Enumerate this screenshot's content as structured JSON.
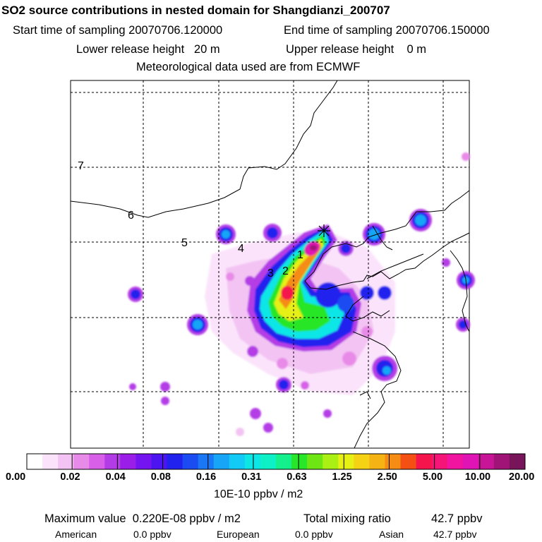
{
  "header": {
    "title": "SO2 source contributions in nested domain for Shangdianzi_200707",
    "start_sampling": "Start time of sampling 20070706.120000",
    "end_sampling": "End time of sampling 20070706.150000",
    "lower_release": "Lower release height   20 m",
    "upper_release": "Upper release height    0 m",
    "meteo": "Meteorological data used are from ECMWF"
  },
  "chart_data": {
    "type": "heatmap",
    "title": "SO2 source contributions in nested domain for Shangdianzi_200707",
    "units": "10E-10 ppbv / m2",
    "colorbar": {
      "tick_labels": [
        "0.00",
        "0.02",
        "0.04",
        "0.08",
        "0.16",
        "0.31",
        "0.63",
        "1.25",
        "2.50",
        "5.00",
        "10.00",
        "20.00"
      ],
      "colors": [
        "#ffffff",
        "#fbe4fb",
        "#f3c4f3",
        "#e88ae8",
        "#d860e8",
        "#b43ce6",
        "#9b1de8",
        "#7414f0",
        "#4b14f0",
        "#2222ee",
        "#1a4cf2",
        "#1a78f5",
        "#17a6f7",
        "#12caf5",
        "#0ee6e6",
        "#0ef0c6",
        "#14f08c",
        "#28e628",
        "#6ee614",
        "#aaf014",
        "#e6f014",
        "#f5d214",
        "#f5b414",
        "#f58c14",
        "#f55014",
        "#f5144b",
        "#f51478",
        "#f014a0",
        "#e014b4",
        "#c81496",
        "#a01478",
        "#78145a"
      ]
    },
    "trajectory_labels": [
      "1",
      "2",
      "3",
      "4",
      "5",
      "6",
      "7"
    ],
    "receptor_marker": "Shangdianzi"
  },
  "summary": {
    "max_label": "Maximum value  0.220E-08 ppbv / m2",
    "total_label": "Total mixing ratio",
    "total_value": "42.7 ppbv",
    "american_label": "American",
    "american_value": "0.0 ppbv",
    "european_label": "European",
    "european_value": "0.0 ppbv",
    "asian_label": "Asian",
    "asian_value": "42.7 ppbv"
  }
}
